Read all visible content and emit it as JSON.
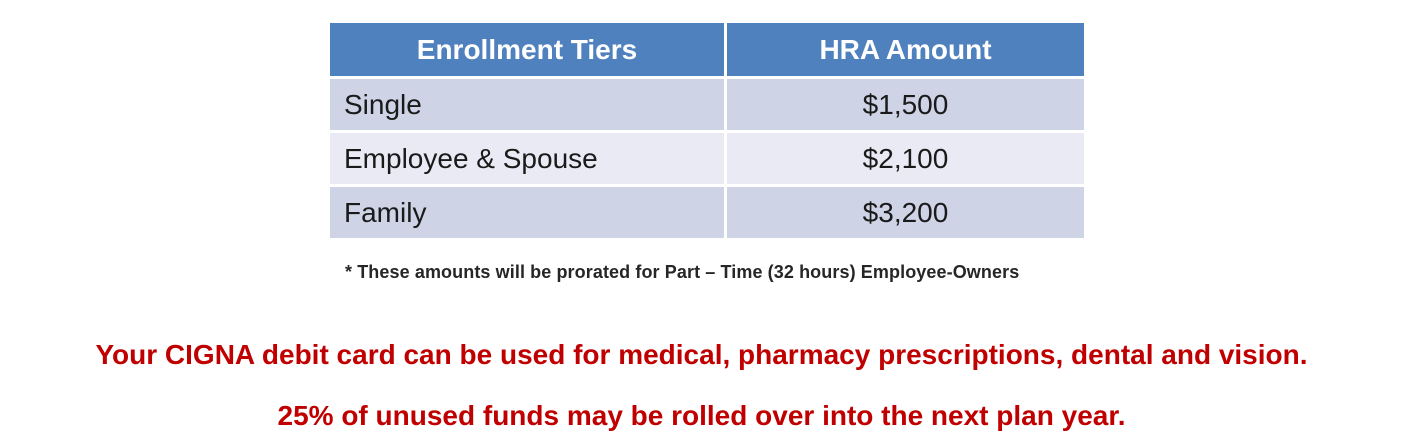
{
  "table": {
    "headers": [
      "Enrollment Tiers",
      "HRA Amount"
    ],
    "rows": [
      {
        "tier": "Single",
        "amount": "$1,500"
      },
      {
        "tier": "Employee & Spouse",
        "amount": "$2,100"
      },
      {
        "tier": "Family",
        "amount": "$3,200"
      }
    ],
    "footnote": "* These amounts will be prorated for Part – Time (32 hours) Employee-Owners"
  },
  "notes": {
    "line1": "Your CIGNA debit card can be used for medical, pharmacy prescriptions, dental and vision.",
    "line2": "25% of unused funds may be rolled over into the next plan year."
  },
  "chart_data": {
    "type": "table",
    "title": "",
    "columns": [
      "Enrollment Tiers",
      "HRA Amount"
    ],
    "rows": [
      [
        "Single",
        1500
      ],
      [
        "Employee & Spouse",
        2100
      ],
      [
        "Family",
        3200
      ]
    ]
  },
  "colors": {
    "header_bg": "#4E81BD",
    "row_odd_bg": "#CED3E6",
    "row_even_bg": "#E9EAF3",
    "note_red": "#C00000"
  }
}
